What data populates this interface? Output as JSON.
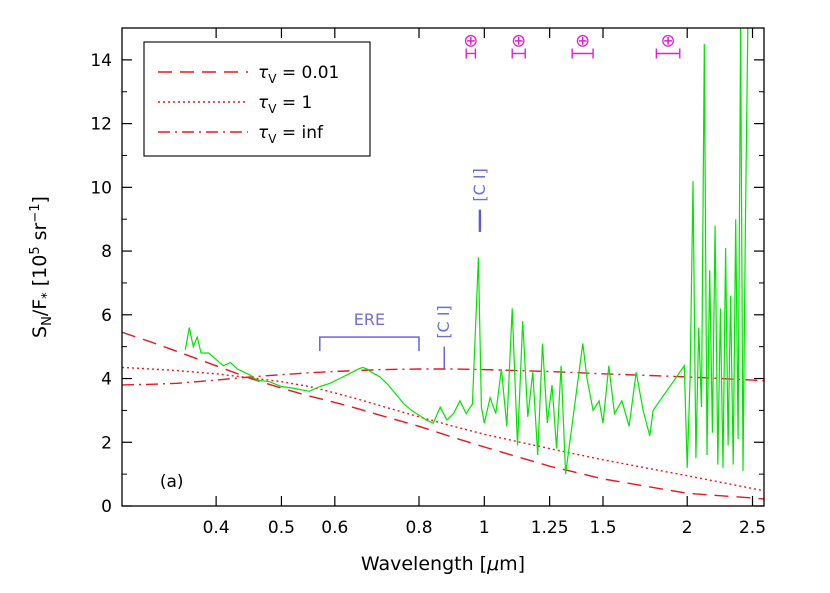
{
  "chart_data": {
    "type": "line",
    "xlabel": "Wavelength [μm]",
    "xlabel_parts": {
      "main": "Wavelength [",
      "mu": "μ",
      "unit": "m]"
    },
    "ylabel": "S_N/F_* [10^5 sr^-1]",
    "ylabel_parts": {
      "s": "S",
      "s_sub": "N",
      "slash": "/F",
      "f_sub": "*",
      "open": " [10",
      "exp": "5",
      "mid": " sr",
      "exp2": "−1",
      "close": "]"
    },
    "x_scale": "log",
    "xlim": [
      0.29,
      2.6
    ],
    "ylim": [
      0,
      15
    ],
    "x_ticks": [
      {
        "value": 0.4,
        "label": "0.4"
      },
      {
        "value": 0.5,
        "label": "0.5"
      },
      {
        "value": 0.6,
        "label": "0.6"
      },
      {
        "value": 0.8,
        "label": "0.8"
      },
      {
        "value": 1.0,
        "label": "1"
      },
      {
        "value": 1.25,
        "label": "1.25"
      },
      {
        "value": 1.5,
        "label": "1.5"
      },
      {
        "value": 2.0,
        "label": "2"
      },
      {
        "value": 2.5,
        "label": "2.5"
      }
    ],
    "y_ticks": [
      {
        "value": 0,
        "label": "0"
      },
      {
        "value": 2,
        "label": "2"
      },
      {
        "value": 4,
        "label": "4"
      },
      {
        "value": 6,
        "label": "6"
      },
      {
        "value": 8,
        "label": "8"
      },
      {
        "value": 10,
        "label": "10"
      },
      {
        "value": 12,
        "label": "12"
      },
      {
        "value": 14,
        "label": "14"
      }
    ],
    "legend": {
      "placement": "top-left",
      "entries": [
        {
          "symbol": "τ",
          "sub": "V",
          "text": " = 0.01",
          "style": "dashed",
          "color": "#e8171f"
        },
        {
          "symbol": "τ",
          "sub": "V",
          "text": " = 1",
          "style": "dotted",
          "color": "#e8171f"
        },
        {
          "symbol": "τ",
          "sub": "V",
          "text": " = inf",
          "style": "dashdot",
          "color": "#e8171f"
        }
      ]
    },
    "series": [
      {
        "style": "dashed",
        "color": "#e8171f",
        "x": [
          0.29,
          0.32,
          0.35,
          0.4,
          0.45,
          0.5,
          0.55,
          0.6,
          0.65,
          0.7,
          0.8,
          0.9,
          1.0,
          1.25,
          1.5,
          2.0,
          2.5,
          2.6
        ],
        "y": [
          5.45,
          5.15,
          4.85,
          4.4,
          4.0,
          3.7,
          3.45,
          3.25,
          3.05,
          2.85,
          2.5,
          2.15,
          1.85,
          1.25,
          0.85,
          0.4,
          0.25,
          0.22
        ]
      },
      {
        "style": "dotted",
        "color": "#e8171f",
        "x": [
          0.29,
          0.32,
          0.35,
          0.4,
          0.45,
          0.5,
          0.55,
          0.6,
          0.65,
          0.7,
          0.8,
          0.9,
          1.0,
          1.25,
          1.5,
          2.0,
          2.5,
          2.6
        ],
        "y": [
          4.35,
          4.3,
          4.25,
          4.15,
          4.02,
          3.9,
          3.75,
          3.55,
          3.35,
          3.15,
          2.8,
          2.5,
          2.25,
          1.8,
          1.45,
          0.95,
          0.55,
          0.48
        ]
      },
      {
        "style": "dashdot",
        "color": "#e8171f",
        "x": [
          0.29,
          0.32,
          0.35,
          0.4,
          0.45,
          0.5,
          0.55,
          0.6,
          0.7,
          0.8,
          0.9,
          1.0,
          1.25,
          1.5,
          2.0,
          2.5,
          2.6
        ],
        "y": [
          3.8,
          3.82,
          3.85,
          3.95,
          4.05,
          4.12,
          4.18,
          4.22,
          4.28,
          4.3,
          4.3,
          4.28,
          4.22,
          4.15,
          4.05,
          3.95,
          3.93
        ]
      },
      {
        "style": "observed",
        "color": "#00e600",
        "x": [
          0.36,
          0.365,
          0.37,
          0.375,
          0.38,
          0.39,
          0.4,
          0.41,
          0.42,
          0.43,
          0.44,
          0.45,
          0.46,
          0.48,
          0.5,
          0.52,
          0.55,
          0.57,
          0.59,
          0.61,
          0.63,
          0.65,
          0.66,
          0.67,
          0.68,
          0.7,
          0.72,
          0.74,
          0.76,
          0.78,
          0.8,
          0.82,
          0.84,
          0.86,
          0.88,
          0.9,
          0.92,
          0.94,
          0.96,
          0.98,
          0.99,
          1.0,
          1.02,
          1.04,
          1.06,
          1.08,
          1.1,
          1.12,
          1.14,
          1.16,
          1.18,
          1.2,
          1.22,
          1.24,
          1.26,
          1.28,
          1.3,
          1.32,
          1.4,
          1.42,
          1.45,
          1.48,
          1.5,
          1.53,
          1.56,
          1.6,
          1.64,
          1.68,
          1.72,
          1.76,
          1.78,
          1.98,
          2.0,
          2.02,
          2.04,
          2.06,
          2.08,
          2.1,
          2.12,
          2.14,
          2.16,
          2.18,
          2.2,
          2.22,
          2.24,
          2.26,
          2.28,
          2.3,
          2.32,
          2.34,
          2.36,
          2.38,
          2.4,
          2.42,
          2.44,
          2.46
        ],
        "y": [
          4.9,
          5.6,
          5.0,
          5.3,
          4.8,
          4.8,
          4.6,
          4.4,
          4.5,
          4.3,
          4.2,
          4.1,
          3.95,
          3.9,
          3.75,
          3.7,
          3.6,
          3.75,
          3.85,
          4.0,
          4.15,
          4.3,
          4.35,
          4.3,
          4.2,
          4.05,
          3.8,
          3.5,
          3.2,
          3.0,
          2.85,
          2.7,
          2.6,
          3.1,
          2.7,
          2.9,
          3.3,
          2.9,
          3.2,
          7.8,
          3.1,
          2.6,
          3.4,
          2.9,
          4.3,
          2.5,
          6.2,
          1.9,
          5.8,
          2.8,
          4.2,
          1.6,
          5.1,
          2.6,
          3.8,
          1.8,
          4.4,
          1.0,
          5.1,
          4.0,
          3.0,
          3.3,
          2.6,
          4.4,
          2.9,
          3.3,
          2.5,
          4.2,
          3.0,
          2.2,
          3.0,
          4.4,
          1.2,
          4.0,
          10.2,
          1.5,
          5.6,
          3.1,
          14.5,
          1.6,
          7.4,
          2.3,
          8.8,
          1.3,
          6.2,
          1.2,
          8.1,
          1.9,
          6.6,
          1.3,
          9.0,
          2.1,
          15.0,
          1.1,
          8.8,
          15.0
        ]
      }
    ],
    "annotations": {
      "panel_label": "(a)",
      "ere": {
        "label": "ERE",
        "x_start": 0.57,
        "x_end": 0.8,
        "y": 5.3
      },
      "ci_lines": [
        {
          "label": "[C I]",
          "x": 0.872,
          "y_low": 4.3,
          "y_high": 5.0
        },
        {
          "label": "[C I]",
          "x": 0.985,
          "y_low": 8.6,
          "y_high": 9.3
        }
      ],
      "telluric": {
        "symbol": "⊕",
        "color": "#e020d0",
        "bands": [
          {
            "x_start": 0.94,
            "x_end": 0.97,
            "y": 14.2
          },
          {
            "x_start": 1.1,
            "x_end": 1.15,
            "y": 14.2
          },
          {
            "x_start": 1.35,
            "x_end": 1.45,
            "y": 14.2
          },
          {
            "x_start": 1.8,
            "x_end": 1.95,
            "y": 14.2
          }
        ]
      }
    }
  }
}
